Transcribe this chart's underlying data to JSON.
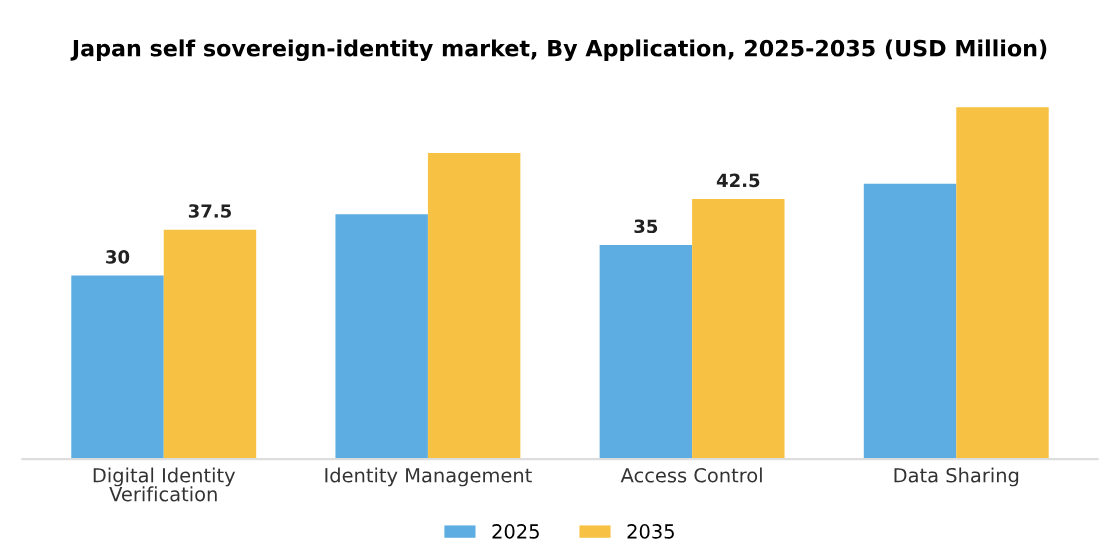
{
  "chart_data": {
    "type": "bar",
    "title": "Japan self sovereign-identity market, By Application, 2025-2035 (USD Million)",
    "categories": [
      "Digital Identity\nVerification",
      "Identity Management",
      "Access Control",
      "Data Sharing"
    ],
    "series": [
      {
        "name": "2025",
        "color": "#5dade2",
        "values": [
          30,
          40,
          35,
          45
        ],
        "value_labels": [
          "30",
          null,
          "35",
          null
        ]
      },
      {
        "name": "2035",
        "color": "#f7c244",
        "values": [
          37.5,
          50,
          42.5,
          57.5
        ],
        "value_labels": [
          "37.5",
          null,
          "42.5",
          null
        ]
      }
    ],
    "legend": "bottom",
    "grid": false
  }
}
